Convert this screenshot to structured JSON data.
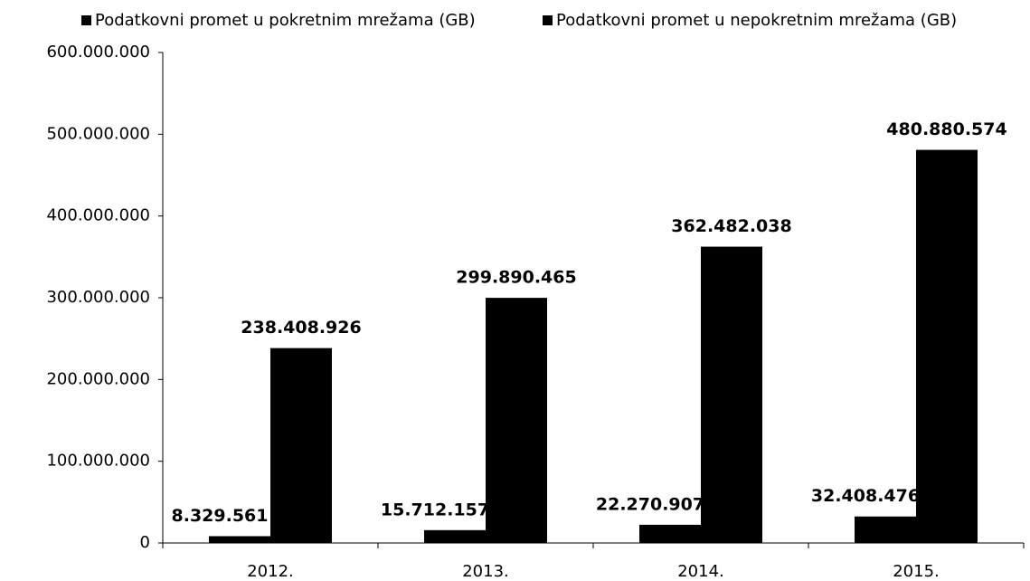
{
  "chart_data": {
    "type": "bar",
    "categories": [
      "2012.",
      "2013.",
      "2014.",
      "2015."
    ],
    "series": [
      {
        "name": "Podatkovni promet u pokretnim mrežama (GB)",
        "color": "#000000",
        "values": [
          8329561,
          15712157,
          22270907,
          32408476
        ],
        "value_labels": [
          "8.329.561",
          "15.712.157",
          "22.270.907",
          "32.408.476"
        ]
      },
      {
        "name": "Podatkovni promet u nepokretnim mrežama (GB)",
        "color": "#000000",
        "values": [
          238408926,
          299890465,
          362482038,
          480880574
        ],
        "value_labels": [
          "238.408.926",
          "299.890.465",
          "362.482.038",
          "480.880.574"
        ]
      }
    ],
    "ylim": [
      0,
      600000000
    ],
    "yticks": [
      0,
      {
        "value": 100000000,
        "label": "100.000.000"
      },
      {
        "value": 200000000,
        "label": "200.000.000"
      },
      {
        "value": 300000000,
        "label": "300.000.000"
      },
      {
        "value": 400000000,
        "label": "400.000.000"
      },
      {
        "value": 500000000,
        "label": "500.000.000"
      },
      {
        "value": 600000000,
        "label": "600.000.000"
      }
    ],
    "legend": "top",
    "grid": false
  }
}
